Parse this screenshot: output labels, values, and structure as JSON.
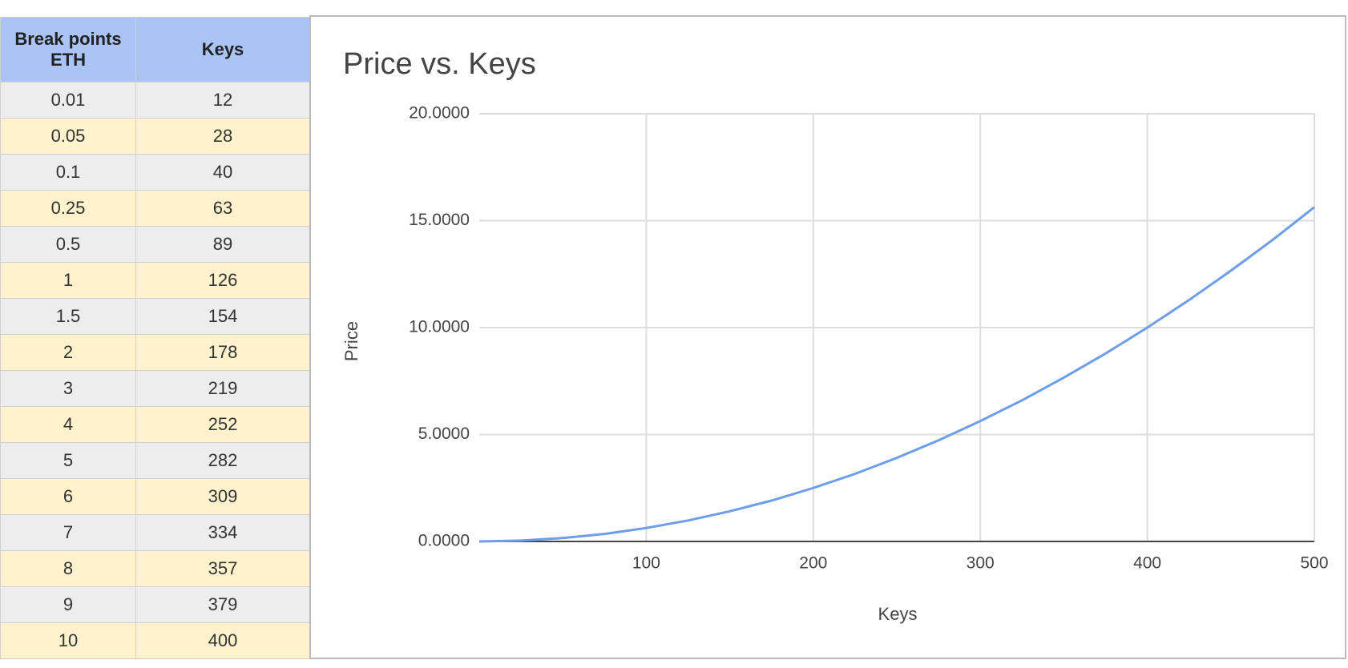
{
  "table": {
    "header": [
      "Break points ETH",
      "Keys"
    ],
    "rows": [
      [
        "0.01",
        "12"
      ],
      [
        "0.05",
        "28"
      ],
      [
        "0.1",
        "40"
      ],
      [
        "0.25",
        "63"
      ],
      [
        "0.5",
        "89"
      ],
      [
        "1",
        "126"
      ],
      [
        "1.5",
        "154"
      ],
      [
        "2",
        "178"
      ],
      [
        "3",
        "219"
      ],
      [
        "4",
        "252"
      ],
      [
        "5",
        "282"
      ],
      [
        "6",
        "309"
      ],
      [
        "7",
        "334"
      ],
      [
        "8",
        "357"
      ],
      [
        "9",
        "379"
      ],
      [
        "10",
        "400"
      ]
    ]
  },
  "chart_data": {
    "type": "line",
    "title": "Price vs. Keys",
    "x_label": "Keys",
    "y_label": "Price",
    "x": [
      0,
      25,
      50,
      75,
      100,
      125,
      150,
      175,
      200,
      225,
      250,
      275,
      300,
      325,
      350,
      375,
      400,
      425,
      450,
      475,
      500
    ],
    "values": [
      0,
      0.04,
      0.16,
      0.35,
      0.63,
      0.98,
      1.41,
      1.91,
      2.5,
      3.16,
      3.91,
      4.73,
      5.63,
      6.6,
      7.66,
      8.79,
      10,
      11.29,
      12.66,
      14.1,
      15.63
    ],
    "color": "#6d9eeb",
    "xlim": [
      0,
      500
    ],
    "xticks": [
      100,
      200,
      300,
      400,
      500
    ],
    "ylim": [
      0,
      20
    ],
    "yticks": [
      {
        "value": 0,
        "label": "0.0000"
      },
      {
        "value": 5,
        "label": "5.0000"
      },
      {
        "value": 10,
        "label": "10.0000"
      },
      {
        "value": 15,
        "label": "15.0000"
      },
      {
        "value": 20,
        "label": "20.0000"
      }
    ],
    "grid": true
  }
}
